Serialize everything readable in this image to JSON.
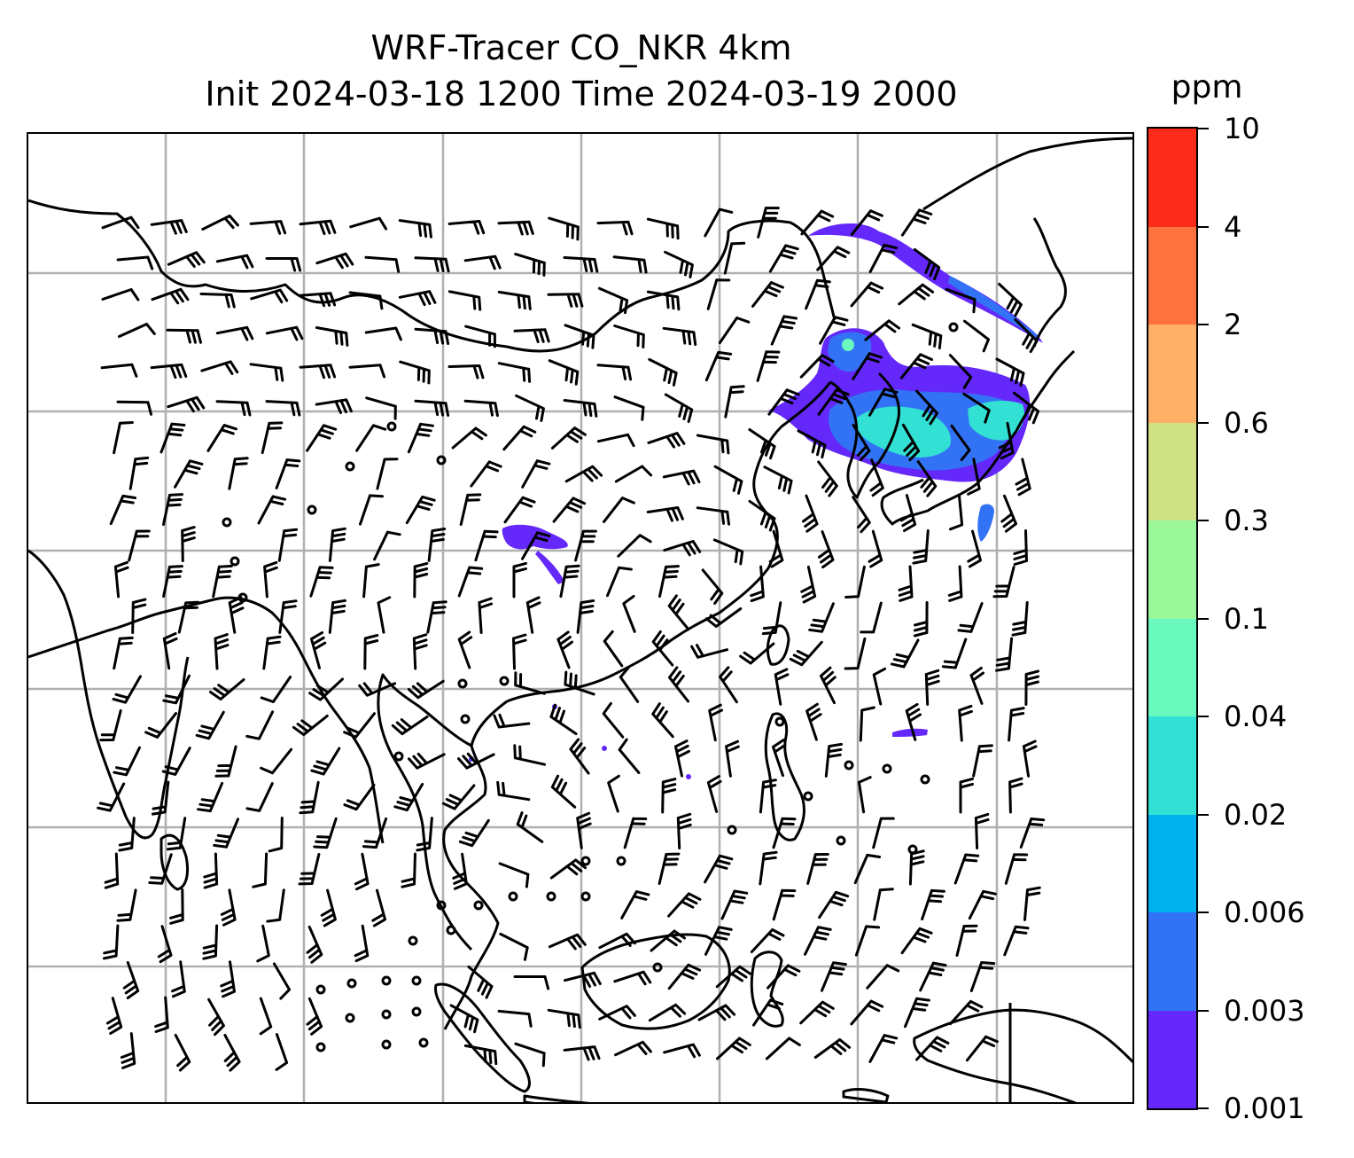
{
  "title": {
    "line1": "WRF-Tracer CO_NKR 4km",
    "line2": "Init 2024-03-18 1200 Time 2024-03-19 2000"
  },
  "colorbar": {
    "unit": "ppm",
    "levels": [
      "0.001",
      "0.003",
      "0.006",
      "0.02",
      "0.04",
      "0.1",
      "0.3",
      "0.6",
      "2",
      "4",
      "10"
    ],
    "colors": [
      "#6428fa",
      "#3273f5",
      "#00b1ee",
      "#32e0d4",
      "#69f8bd",
      "#9bf89a",
      "#cfe184",
      "#fdb066",
      "#fe733d",
      "#fd2b19"
    ]
  },
  "map": {
    "gridlines": true,
    "coastline_color": "#000000",
    "wind_barb_color": "#000000"
  }
}
